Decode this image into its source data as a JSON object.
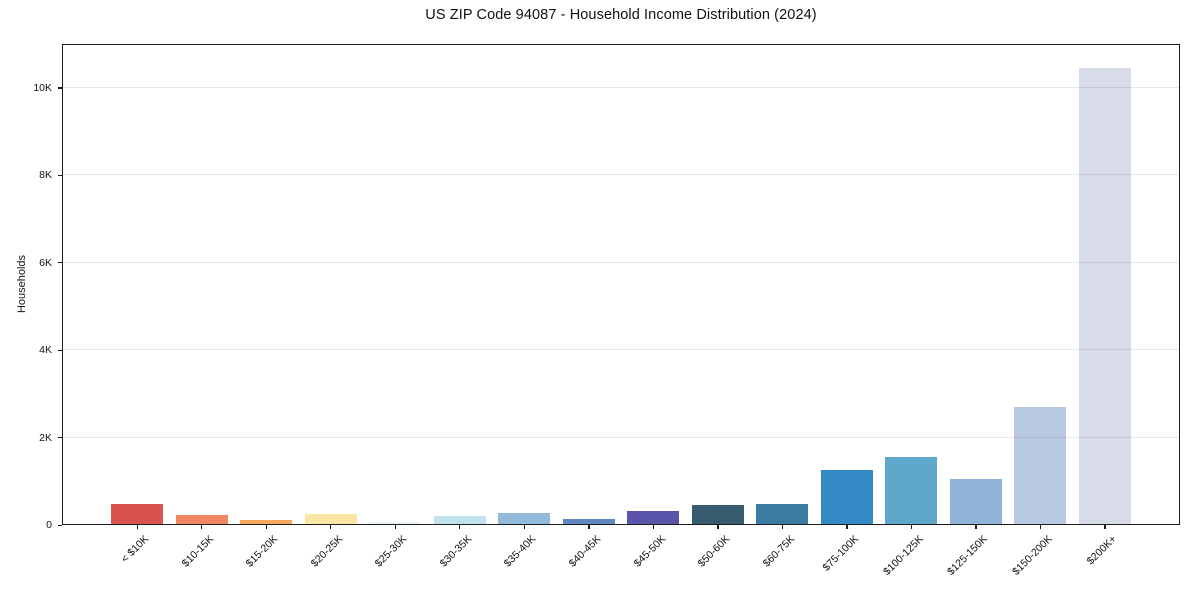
{
  "window": {
    "title": "US ZIP Code 94087 - Household Income Distribution (2024)"
  },
  "chart_data": {
    "type": "bar",
    "title": "US ZIP Code 94087 - Household Income Distribution (2024)",
    "xlabel": "",
    "ylabel": "Households",
    "categories": [
      "< $10K",
      "$10-15K",
      "$15-20K",
      "$20-25K",
      "$25-30K",
      "$30-35K",
      "$35-40K",
      "$40-45K",
      "$45-50K",
      "$50-60K",
      "$60-75K",
      "$75-100K",
      "$100-125K",
      "$125-150K",
      "$150-200K",
      "$200K+"
    ],
    "values": [
      470,
      240,
      110,
      260,
      75,
      200,
      280,
      140,
      330,
      450,
      480,
      1250,
      1550,
      1050,
      2700,
      10450
    ],
    "bar_colors": [
      "#d8524e",
      "#f28660",
      "#f6a85f",
      "#fbe7a4",
      "#e6f5ef",
      "#bfe2ee",
      "#92bada",
      "#6288c2",
      "#5a55ab",
      "#375c70",
      "#3a7ba3",
      "#3389c4",
      "#5fa8cc",
      "#90b5d8",
      "#b9c9e2",
      "#d8dbe8"
    ],
    "yticks": [
      {
        "value": 0,
        "label": "0"
      },
      {
        "value": 2000,
        "label": "2K"
      },
      {
        "value": 4000,
        "label": "4K"
      },
      {
        "value": 6000,
        "label": "6K"
      },
      {
        "value": 8000,
        "label": "8K"
      },
      {
        "value": 10000,
        "label": "10K"
      }
    ],
    "ylim": [
      0,
      11000
    ],
    "grid": "horizontal-on-top",
    "legend": "none",
    "colors": {
      "spine": "#1c1c1c",
      "grid": "#e9e9e9",
      "text": "#111111",
      "background": "#ffffff"
    }
  }
}
